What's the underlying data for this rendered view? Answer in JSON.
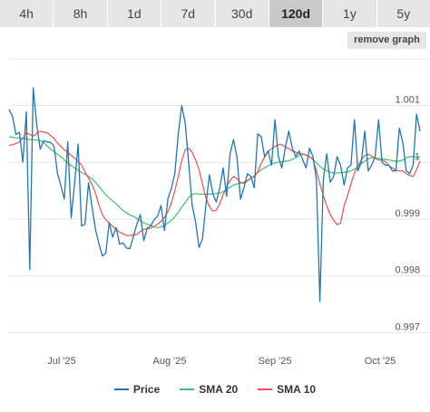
{
  "tabs": [
    {
      "label": "4h",
      "active": false
    },
    {
      "label": "8h",
      "active": false
    },
    {
      "label": "1d",
      "active": false
    },
    {
      "label": "7d",
      "active": false
    },
    {
      "label": "30d",
      "active": false
    },
    {
      "label": "120d",
      "active": true
    },
    {
      "label": "1y",
      "active": false
    },
    {
      "label": "5y",
      "active": false
    }
  ],
  "remove_graph_label": "remove graph",
  "chart_data": {
    "type": "line",
    "x_tick_labels": [
      "Jul '25",
      "Aug '25",
      "Sep '25",
      "Oct '25"
    ],
    "y_tick_labels": [
      "1.001",
      "1",
      "0.999",
      "0.998",
      "0.997"
    ],
    "y_ticks": [
      1.001,
      1.0,
      0.999,
      0.998,
      0.997
    ],
    "ylim": [
      0.99675,
      1.00195
    ],
    "grid": true,
    "legend_position": "bottom",
    "series": [
      {
        "name": "Price",
        "color": "#1f77b4",
        "values": [
          1.00093,
          1.00081,
          1.00049,
          1.00053,
          1.0,
          1.00089,
          0.99811,
          1.00131,
          1.00066,
          1.00023,
          1.00038,
          1.00036,
          1.00035,
          1.00029,
          0.99981,
          0.99959,
          0.99935,
          1.00036,
          0.99902,
          0.99964,
          1.00032,
          0.99888,
          0.99891,
          0.99964,
          0.99922,
          0.99882,
          0.99857,
          0.99835,
          0.9984,
          0.99894,
          0.99868,
          0.99885,
          0.99856,
          0.99858,
          0.99849,
          0.99848,
          0.99869,
          0.99891,
          0.99908,
          0.99862,
          0.99884,
          0.99888,
          0.99899,
          0.99905,
          0.99924,
          0.9988,
          0.99936,
          0.99954,
          0.9998,
          1.0005,
          1.001,
          1.0007,
          1.0,
          0.99925,
          0.99895,
          0.9985,
          0.99865,
          0.99925,
          0.99978,
          0.99945,
          0.9993,
          0.99955,
          0.9999,
          0.9994,
          1.00015,
          1.0004,
          1.0001,
          0.99935,
          0.99955,
          0.9998,
          0.99975,
          0.99955,
          1.0005,
          1.00045,
          1.0001,
          1.0002,
          0.99995,
          1.00075,
          1.0001,
          0.9999,
          1.00025,
          1.00055,
          1.00025,
          1.0001,
          1.0002,
          1.00005,
          0.9999,
          1.00025,
          1.0001,
          0.9997,
          0.99755,
          0.9997,
          1.00015,
          0.99965,
          0.99975,
          1.0001,
          0.99995,
          0.9996,
          0.9999,
          0.99995,
          1.00075,
          0.99985,
          1.0,
          1.00055,
          0.99985,
          0.99995,
          1.0001,
          1.00075,
          1.0,
          0.99995,
          0.99995,
          0.99985,
          0.99985,
          1.0006,
          1.00035,
          0.99985,
          0.9998,
          0.99995,
          1.00085,
          1.00055
        ]
      },
      {
        "name": "SMA 20",
        "color": "#3fbf6f",
        "values": [
          1.00045,
          1.00044,
          1.00043,
          1.00043,
          1.00042,
          1.00041,
          1.0004,
          1.0004,
          1.00039,
          1.00038,
          1.00035,
          1.00029,
          1.00023,
          1.00019,
          1.00014,
          1.0001,
          1.00004,
          0.99999,
          0.99994,
          0.9999,
          0.99986,
          0.99982,
          0.99979,
          0.99975,
          0.99971,
          0.99965,
          0.99958,
          0.9995,
          0.99943,
          0.99937,
          0.99932,
          0.99927,
          0.99921,
          0.99915,
          0.99911,
          0.99907,
          0.99905,
          0.99901,
          0.99897,
          0.99893,
          0.99891,
          0.99889,
          0.99886,
          0.99885,
          0.99886,
          0.99889,
          0.99893,
          0.99898,
          0.99904,
          0.99912,
          0.99921,
          0.99929,
          0.99938,
          0.99943,
          0.99945,
          0.99944,
          0.99944,
          0.99944,
          0.99944,
          0.99944,
          0.99945,
          0.99946,
          0.99948,
          0.99952,
          0.99956,
          0.9996,
          0.99962,
          0.99963,
          0.99965,
          0.99968,
          0.99972,
          0.99976,
          0.99982,
          0.99987,
          0.9999,
          0.99994,
          0.99997,
          0.99999,
          1.0,
          1.00001,
          1.00002,
          1.00003,
          1.00005,
          1.00008,
          1.00012,
          1.00015,
          1.00013,
          1.0001,
          1.00005,
          0.99999,
          0.99993,
          0.99988,
          0.99985,
          0.99983,
          0.99981,
          0.99981,
          0.99982,
          0.99982,
          0.99983,
          0.99985,
          0.99988,
          0.99993,
          0.99998,
          1.00002,
          1.00006,
          1.00008,
          1.00008,
          1.00007,
          1.00006,
          1.00005,
          1.00004,
          1.00003,
          1.00002,
          1.00002,
          1.00004,
          1.00008,
          1.0001,
          1.0001,
          1.00009,
          1.00009
        ]
      },
      {
        "name": "SMA 10",
        "color": "#f04d4d",
        "values": [
          1.0003,
          1.00031,
          1.00033,
          1.00036,
          1.00042,
          1.00052,
          1.00049,
          1.00046,
          1.00051,
          1.00055,
          1.00053,
          1.00052,
          1.00047,
          1.00042,
          1.00034,
          1.00028,
          1.00022,
          1.00018,
          1.00012,
          1.00007,
          1.00002,
          0.99995,
          0.99983,
          0.99972,
          0.99961,
          0.99946,
          0.99925,
          0.99908,
          0.99899,
          0.99893,
          0.99887,
          0.99882,
          0.99877,
          0.99874,
          0.99871,
          0.99871,
          0.99872,
          0.99873,
          0.99878,
          0.99882,
          0.99883,
          0.99884,
          0.99887,
          0.99891,
          0.99896,
          0.99903,
          0.99913,
          0.99928,
          0.9995,
          0.99975,
          1.00003,
          1.00022,
          1.00025,
          1.00018,
          1.00004,
          0.99987,
          0.99962,
          0.99937,
          0.99922,
          0.99914,
          0.99916,
          0.99927,
          0.99943,
          0.99957,
          0.99968,
          0.99975,
          0.99971,
          0.99964,
          0.99963,
          0.99967,
          0.99972,
          0.99975,
          0.99983,
          0.99998,
          1.00009,
          1.00019,
          1.00024,
          1.00028,
          1.00031,
          1.00031,
          1.00027,
          1.00024,
          1.0002,
          1.00018,
          1.00015,
          1.00014,
          1.00013,
          1.0001,
          1.00005,
          0.99985,
          0.99962,
          0.99942,
          0.99923,
          0.99908,
          0.99898,
          0.9989,
          0.99893,
          0.99923,
          0.99941,
          0.99962,
          0.99981,
          0.99993,
          1.00004,
          1.00012,
          1.00014,
          1.00011,
          1.00007,
          1.00004,
          1.00004,
          1.00001,
          0.99994,
          0.9999,
          0.99986,
          0.99985,
          0.99985,
          0.9998,
          0.99977,
          0.99975,
          0.99987,
          1.00002
        ]
      }
    ]
  }
}
